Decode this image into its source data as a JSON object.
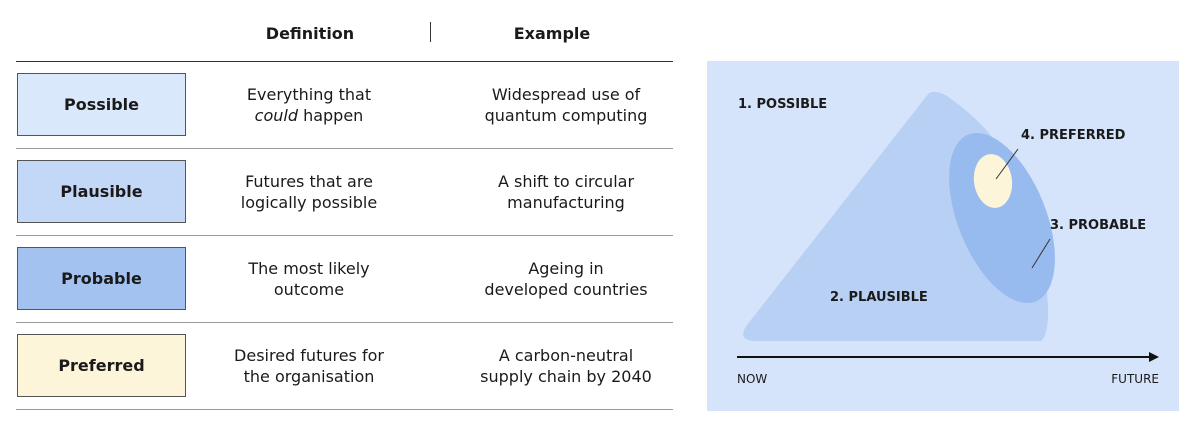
{
  "table": {
    "headers": {
      "definition": "Definition",
      "example": "Example"
    },
    "rows": [
      {
        "name": "Possible",
        "color": "#dae8fb",
        "definition_line1": "Everything that",
        "definition_italic": "could",
        "definition_line2": "happen",
        "example_line1": "Widespread use of",
        "example_line2": "quantum computing"
      },
      {
        "name": "Plausible",
        "color": "#c3d8f6",
        "definition_line1": "Futures that are",
        "definition_line2": "logically possible",
        "example_line1": "A shift to circular",
        "example_line2": "manufacturing"
      },
      {
        "name": "Probable",
        "color": "#a3c2f0",
        "definition_line1": "The most likely",
        "definition_line2": "outcome",
        "example_line1": "Ageing in",
        "example_line2": "developed countries"
      },
      {
        "name": "Preferred",
        "color": "#fdf5da",
        "definition_line1": "Desired futures for",
        "definition_line2": "the organisation",
        "example_line1": "A carbon-neutral",
        "example_line2": "supply chain by 2040"
      }
    ]
  },
  "diagram": {
    "background": "#d5e4fa",
    "labels": {
      "possible": "1. POSSIBLE",
      "plausible": "2. PLAUSIBLE",
      "probable": "3. PROBABLE",
      "preferred": "4. PREFERRED"
    },
    "axis": {
      "start": "NOW",
      "end": "FUTURE"
    },
    "colors": {
      "plausible": "#b7d0f4",
      "probable": "#97bbef",
      "preferred": "#fdf5da"
    }
  }
}
